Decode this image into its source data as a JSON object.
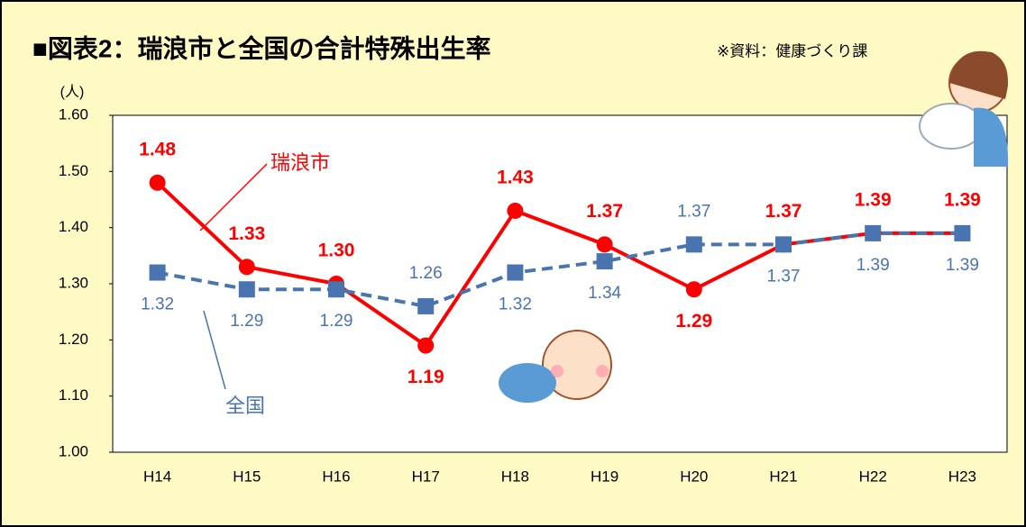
{
  "chart_data": {
    "type": "line",
    "title": "■図表2：瑞浪市と全国の合計特殊出生率",
    "source": "※資料：健康づくり課",
    "y_unit": "(人)",
    "categories": [
      "H14",
      "H15",
      "H16",
      "H17",
      "H18",
      "H19",
      "H20",
      "H21",
      "H22",
      "H23"
    ],
    "series": [
      {
        "name": "瑞浪市",
        "color": "#ff0000",
        "values": [
          1.48,
          1.33,
          1.3,
          1.19,
          1.43,
          1.37,
          1.29,
          1.37,
          1.39,
          1.39
        ],
        "value_labels": [
          "1.48",
          "1.33",
          "1.30",
          "1.19",
          "1.43",
          "1.37",
          "1.29",
          "1.37",
          "1.39",
          "1.39"
        ]
      },
      {
        "name": "全国",
        "color": "#4a74b0",
        "values": [
          1.32,
          1.29,
          1.29,
          1.26,
          1.32,
          1.34,
          1.37,
          1.37,
          1.39,
          1.39
        ],
        "value_labels": [
          "1.32",
          "1.29",
          "1.29",
          "1.26",
          "1.32",
          "1.34",
          "1.37",
          "1.37",
          "1.39",
          "1.39"
        ]
      }
    ],
    "ylim": [
      1.0,
      1.6
    ],
    "yticks": [
      {
        "value": 1.0,
        "label": "1.00"
      },
      {
        "value": 1.1,
        "label": "1.10"
      },
      {
        "value": 1.2,
        "label": "1.20"
      },
      {
        "value": 1.3,
        "label": "1.30"
      },
      {
        "value": 1.4,
        "label": "1.40"
      },
      {
        "value": 1.5,
        "label": "1.50"
      },
      {
        "value": 1.6,
        "label": "1.60"
      }
    ]
  }
}
